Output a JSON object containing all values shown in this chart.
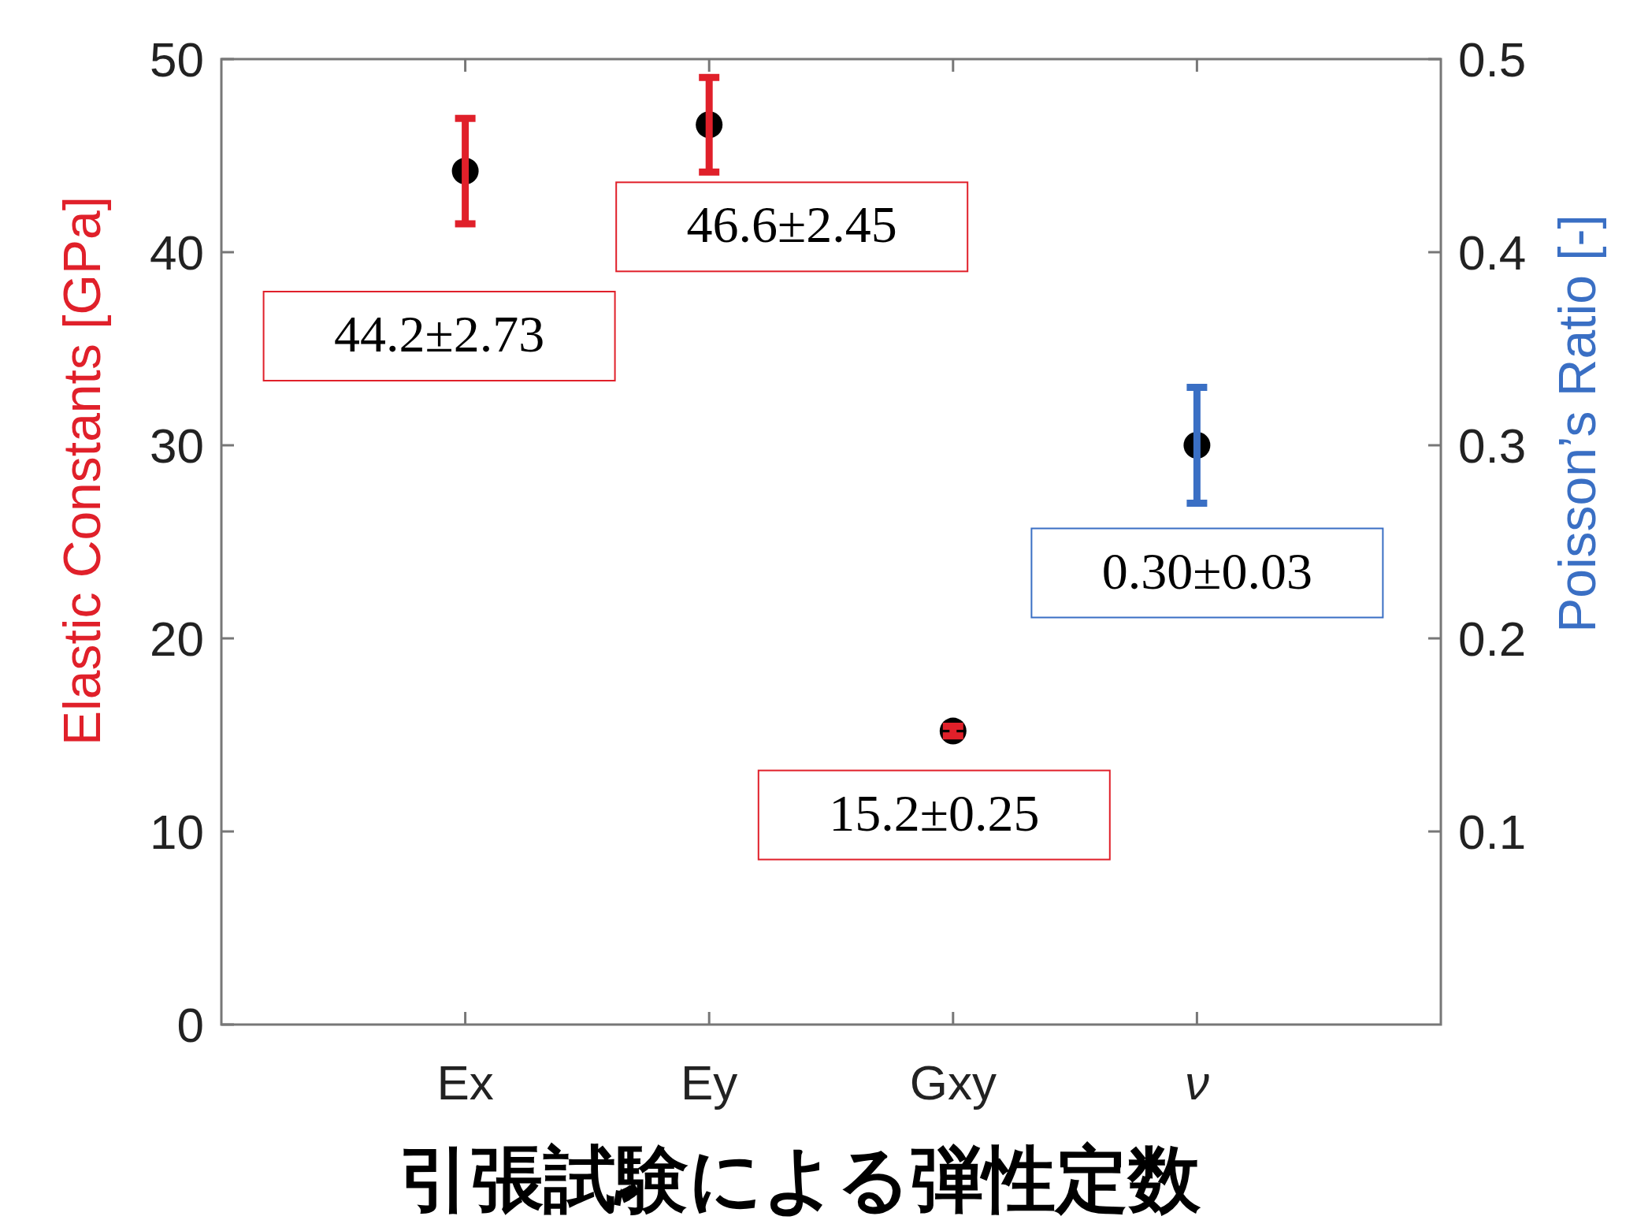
{
  "chart_data": {
    "type": "scatter",
    "categories": [
      "Ex",
      "Ey",
      "Gxy",
      "ν"
    ],
    "ylabel": "Elastic Constants [GPa]",
    "y2label": "Poisson’s Ratio [-]",
    "ylim": [
      0,
      50
    ],
    "yticks": [
      0,
      10,
      20,
      30,
      40,
      50
    ],
    "y2lim": [
      0,
      0.5
    ],
    "y2ticks": [
      0.1,
      0.2,
      0.3,
      0.4,
      0.5
    ],
    "marker": "circle",
    "grid": false,
    "annotations": [
      "引張試験による弾性定数"
    ],
    "series": [
      {
        "color": "#e0202a",
        "colors": [
          "#000000",
          "#000000",
          "#000000",
          null
        ],
        "values": [
          44.2,
          46.6,
          15.2,
          null
        ],
        "errors": [
          2.73,
          2.45,
          0.25,
          null
        ],
        "value_labels": [
          "44.2±2.73",
          "46.6±2.45",
          "15.2±0.25",
          null
        ]
      },
      {
        "color": "#3a6fc4",
        "colors": [
          null,
          null,
          null,
          "#000000"
        ],
        "axis": "y2",
        "values": [
          null,
          null,
          null,
          0.3
        ],
        "errors": [
          null,
          null,
          null,
          0.03
        ],
        "value_labels": [
          null,
          null,
          null,
          "0.30±0.03"
        ]
      }
    ]
  }
}
